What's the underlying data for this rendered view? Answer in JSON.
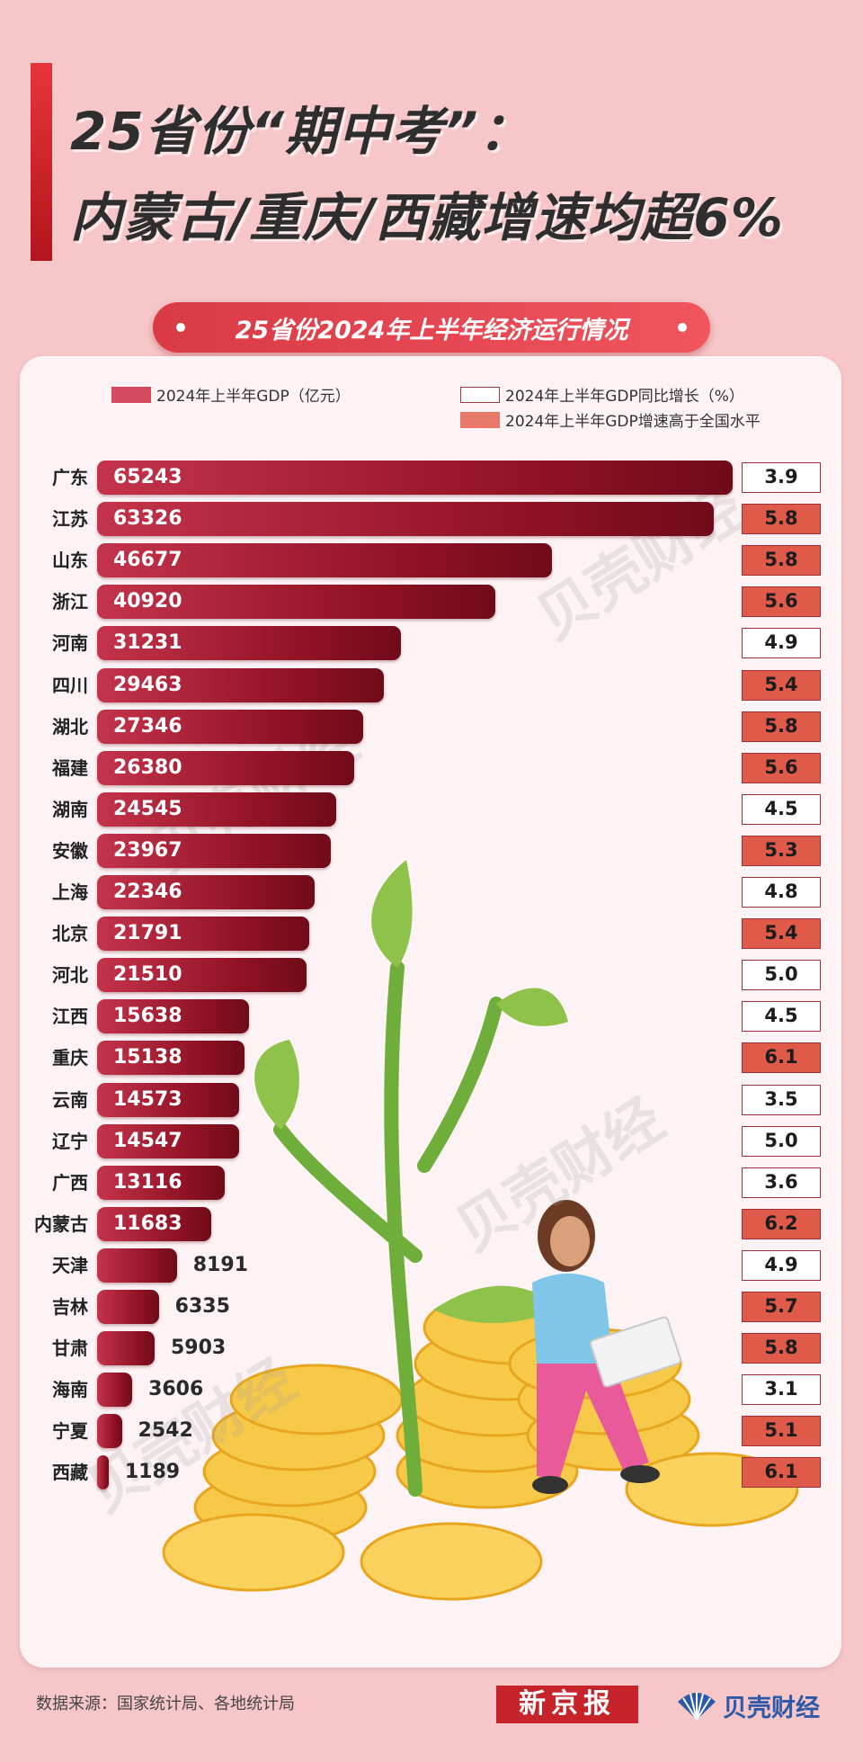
{
  "header": {
    "title_line1": "25省份“期中考”：",
    "title_line2": "内蒙古/重庆/西藏增速均超6%",
    "subtitle": "25省份2024年上半年经济运行情况"
  },
  "legend": {
    "gdp": "2024年上半年GDP（亿元）",
    "growth": "2024年上半年GDP同比增长（%）",
    "above_national": "2024年上半年GDP增速高于全国水平"
  },
  "watermark": "贝壳财经",
  "colors": {
    "bar": "#8f1124",
    "above_national": "#e05a4a",
    "background": "#f7c6c8"
  },
  "chart_data": {
    "type": "bar",
    "orientation": "horizontal",
    "title": "25省份2024年上半年经济运行情况",
    "categories": [
      "广东",
      "江苏",
      "山东",
      "浙江",
      "河南",
      "四川",
      "湖北",
      "福建",
      "湖南",
      "安徽",
      "上海",
      "北京",
      "河北",
      "江西",
      "重庆",
      "云南",
      "辽宁",
      "广西",
      "内蒙古",
      "天津",
      "吉林",
      "甘肃",
      "海南",
      "宁夏",
      "西藏"
    ],
    "series": [
      {
        "name": "2024年上半年GDP（亿元）",
        "values": [
          65243,
          63326,
          46677,
          40920,
          31231,
          29463,
          27346,
          26380,
          24545,
          23967,
          22346,
          21791,
          21510,
          15638,
          15138,
          14573,
          14547,
          13116,
          11683,
          8191,
          6335,
          5903,
          3606,
          2542,
          1189
        ]
      },
      {
        "name": "2024年上半年GDP同比增长（%）",
        "values": [
          "3.9",
          "5.8",
          "5.8",
          "5.6",
          "4.9",
          "5.4",
          "5.8",
          "5.6",
          "4.5",
          "5.3",
          "4.8",
          "5.4",
          "5.0",
          "4.5",
          "6.1",
          "3.5",
          "5.0",
          "3.6",
          "6.2",
          "4.9",
          "5.7",
          "5.8",
          "3.1",
          "5.1",
          "6.1"
        ]
      }
    ],
    "above_national": [
      false,
      true,
      true,
      true,
      false,
      true,
      true,
      true,
      false,
      true,
      false,
      true,
      false,
      false,
      true,
      false,
      false,
      false,
      true,
      false,
      true,
      true,
      false,
      true,
      true
    ],
    "xlim": [
      0,
      65243
    ]
  },
  "footer": {
    "source": "数据来源：国家统计局、各地统计局",
    "logo_left": "新京报",
    "logo_right": "贝壳财经"
  }
}
